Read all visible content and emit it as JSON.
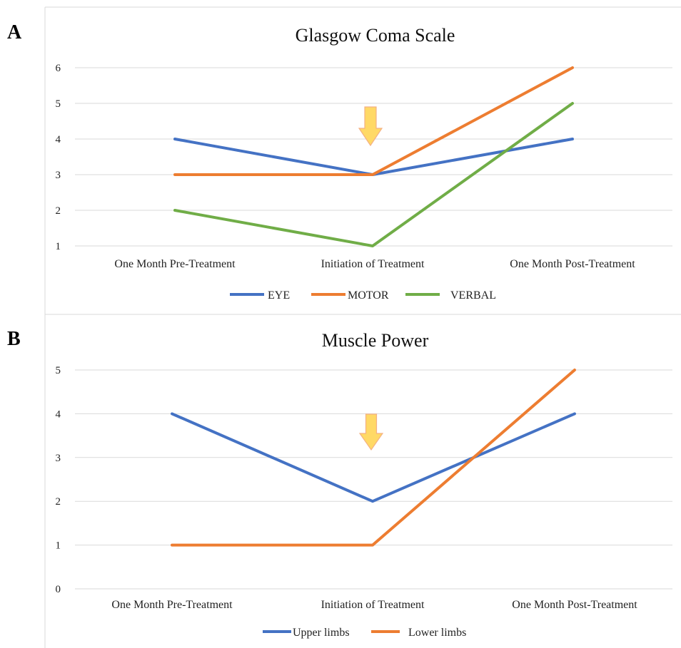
{
  "panels": {
    "a_label": "A",
    "b_label": "B"
  },
  "chart_data": [
    {
      "type": "line",
      "title": "Glasgow Coma Scale",
      "categories": [
        "One Month Pre-Treatment",
        "Initiation of Treatment",
        "One Month Post-Treatment"
      ],
      "series": [
        {
          "name": "EYE",
          "values": [
            4,
            3,
            4
          ],
          "color": "#4472C4"
        },
        {
          "name": "MOTOR",
          "values": [
            3,
            3,
            6
          ],
          "color": "#ED7D31"
        },
        {
          "name": "VERBAL",
          "values": [
            2,
            1,
            5
          ],
          "color": "#70AD47"
        }
      ],
      "ylim": [
        1,
        6
      ],
      "yticks": [
        1,
        2,
        3,
        4,
        5,
        6
      ],
      "grid": true,
      "legend": "bottom",
      "annotation": {
        "type": "down-arrow",
        "at_category": "Initiation of Treatment",
        "color": "#FFD966"
      }
    },
    {
      "type": "line",
      "title": "Muscle Power",
      "categories": [
        "One Month Pre-Treatment",
        "Initiation of Treatment",
        "One Month Post-Treatment"
      ],
      "series": [
        {
          "name": "Upper limbs",
          "values": [
            4,
            2,
            4
          ],
          "color": "#4472C4"
        },
        {
          "name": "Lower limbs",
          "values": [
            1,
            1,
            5
          ],
          "color": "#ED7D31"
        }
      ],
      "ylim": [
        0,
        5
      ],
      "yticks": [
        0,
        1,
        2,
        3,
        4,
        5
      ],
      "grid": true,
      "legend": "bottom",
      "annotation": {
        "type": "down-arrow",
        "at_category": "Initiation of Treatment",
        "color": "#FFD966"
      }
    }
  ]
}
